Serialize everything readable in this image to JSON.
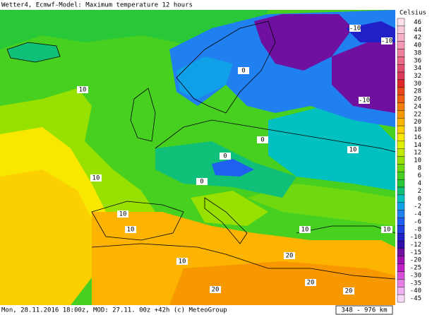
{
  "header": {
    "title": "Wetter4, Ecmwf-Model: Maximum temperature 12 hours"
  },
  "footer": {
    "text": "Mon, 28.11.2016 18:00z, MOD: 27.11. 00z +42h (c) MeteoGroup",
    "scale": "348 - 976 km"
  },
  "legend": {
    "title": "Celsius",
    "items": [
      {
        "label": "46",
        "color": "#fde0ec"
      },
      {
        "label": "44",
        "color": "#fbc8dc"
      },
      {
        "label": "42",
        "color": "#f9b0c8"
      },
      {
        "label": "40",
        "color": "#f598b4"
      },
      {
        "label": "38",
        "color": "#f080a0"
      },
      {
        "label": "36",
        "color": "#ea6888"
      },
      {
        "label": "34",
        "color": "#e45070"
      },
      {
        "label": "32",
        "color": "#de3858"
      },
      {
        "label": "30",
        "color": "#e02828"
      },
      {
        "label": "28",
        "color": "#e84818"
      },
      {
        "label": "26",
        "color": "#f06010"
      },
      {
        "label": "24",
        "color": "#f47c08"
      },
      {
        "label": "22",
        "color": "#f89800"
      },
      {
        "label": "20",
        "color": "#fcb400"
      },
      {
        "label": "18",
        "color": "#fcd000"
      },
      {
        "label": "16",
        "color": "#f8e800"
      },
      {
        "label": "14",
        "color": "#e0f000"
      },
      {
        "label": "12",
        "color": "#c0e800"
      },
      {
        "label": "10",
        "color": "#98e000"
      },
      {
        "label": "8",
        "color": "#70d810"
      },
      {
        "label": "6",
        "color": "#48d020"
      },
      {
        "label": "4",
        "color": "#28c838"
      },
      {
        "label": "2",
        "color": "#10c078"
      },
      {
        "label": "0",
        "color": "#00c0c0"
      },
      {
        "label": "-2",
        "color": "#10a0e8"
      },
      {
        "label": "-4",
        "color": "#2080f0"
      },
      {
        "label": "-6",
        "color": "#2060f0"
      },
      {
        "label": "-8",
        "color": "#2040e0"
      },
      {
        "label": "-10",
        "color": "#2020c8"
      },
      {
        "label": "-12",
        "color": "#3010a8"
      },
      {
        "label": "-15",
        "color": "#7010a0"
      },
      {
        "label": "-20",
        "color": "#a010b0"
      },
      {
        "label": "-25",
        "color": "#c020c8"
      },
      {
        "label": "-30",
        "color": "#d850d8"
      },
      {
        "label": "-35",
        "color": "#e480e4"
      },
      {
        "label": "-40",
        "color": "#eeb0ee"
      },
      {
        "label": "-45",
        "color": "#f8d8f8"
      }
    ]
  },
  "map_labels": [
    "-10",
    "-10",
    "-10",
    "10",
    "0",
    "10",
    "0",
    "0",
    "0",
    "10",
    "10",
    "10",
    "10",
    "20",
    "20",
    "20",
    "20",
    "10",
    "10"
  ]
}
